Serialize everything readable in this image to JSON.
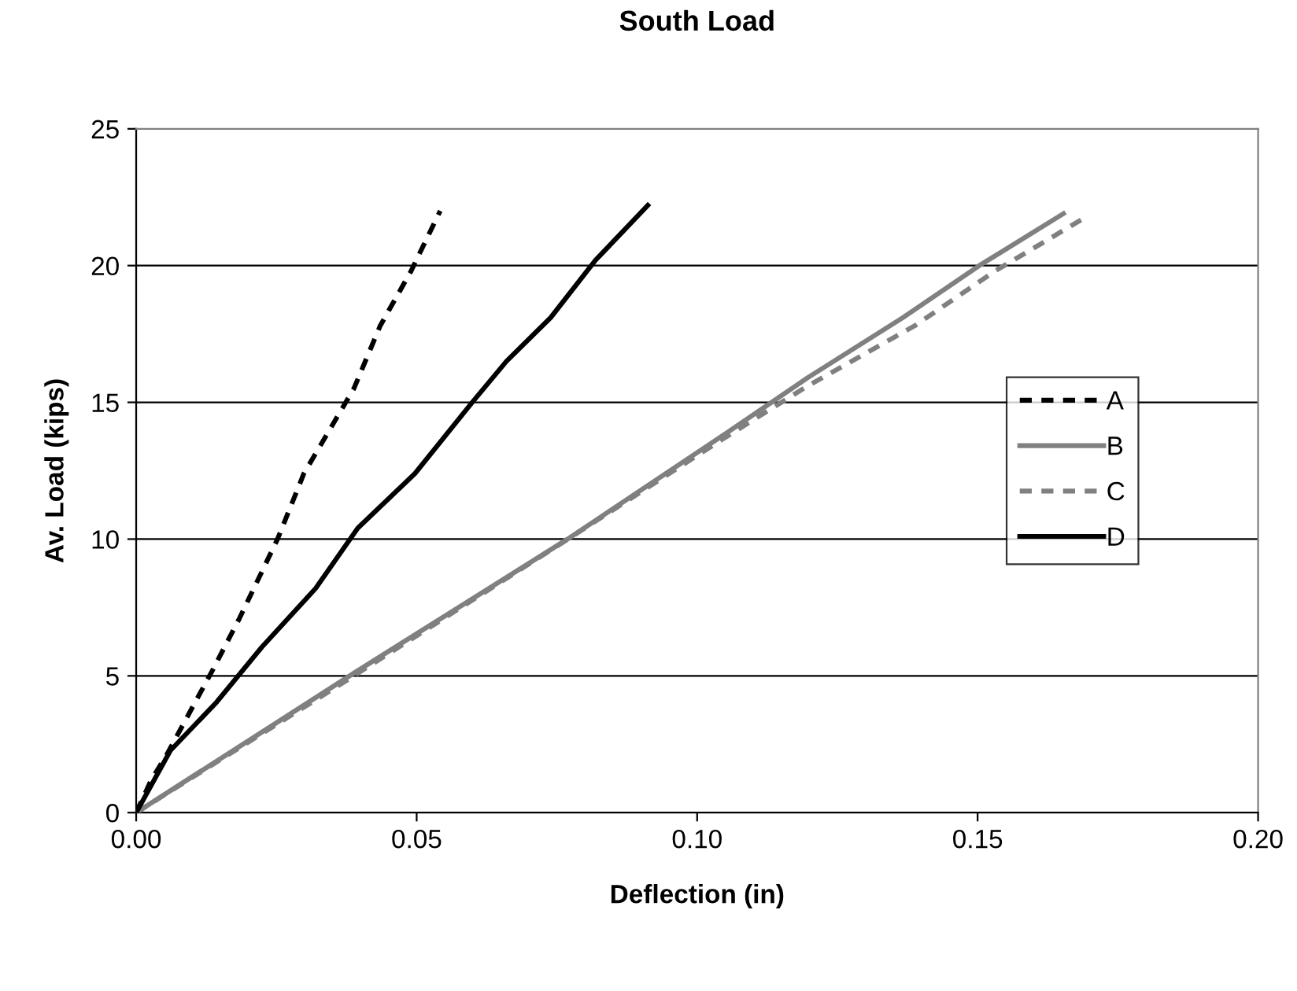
{
  "chart_data": {
    "type": "line",
    "title": "South Load",
    "xlabel": "Deflection (in)",
    "ylabel": "Av. Load (kips)",
    "xlim": [
      0,
      0.2
    ],
    "xticks": [
      {
        "value": 0,
        "label": "0.00"
      },
      {
        "value": 0.05,
        "label": "0.05"
      },
      {
        "value": 0.1,
        "label": "0.10"
      },
      {
        "value": 0.15,
        "label": "0.15"
      },
      {
        "value": 0.2,
        "label": "0.20"
      }
    ],
    "ylim": [
      0,
      25
    ],
    "yticks": [
      0,
      5,
      10,
      15,
      20,
      25
    ],
    "grid": "y",
    "legend": "right",
    "marker": "none",
    "series": [
      {
        "name": "A",
        "color": "#000000",
        "line_style": "dashed",
        "x": [
          0,
          0.0027,
          0.0054,
          0.0136,
          0.0184,
          0.0252,
          0.0299,
          0.0388,
          0.0435,
          0.049,
          0.0542
        ],
        "values": [
          0,
          1.2,
          2.1,
          5.2,
          7.1,
          10.0,
          12.4,
          15.5,
          17.8,
          19.8,
          22.0
        ]
      },
      {
        "name": "B",
        "color": "#808080",
        "line_style": "solid",
        "x": [
          0,
          0.0388,
          0.0769,
          0.1054,
          0.1197,
          0.1367,
          0.1503,
          0.1653
        ],
        "values": [
          0,
          5.1,
          10.0,
          13.9,
          15.9,
          18.1,
          20.0,
          21.9
        ]
      },
      {
        "name": "C",
        "color": "#808080",
        "line_style": "dashed",
        "x": [
          0,
          0.0388,
          0.0762,
          0.1041,
          0.1197,
          0.1388,
          0.1531,
          0.1687
        ],
        "values": [
          0,
          5.0,
          9.9,
          13.6,
          15.6,
          17.8,
          19.8,
          21.7
        ]
      },
      {
        "name": "D",
        "color": "#000000",
        "line_style": "solid",
        "x": [
          0,
          0.0061,
          0.0143,
          0.0224,
          0.032,
          0.0395,
          0.0497,
          0.0599,
          0.066,
          0.0739,
          0.0819,
          0.0912
        ],
        "values": [
          0,
          2.27,
          4.03,
          6.05,
          8.2,
          10.4,
          12.4,
          15.0,
          16.5,
          18.1,
          20.2,
          22.2
        ]
      }
    ]
  }
}
